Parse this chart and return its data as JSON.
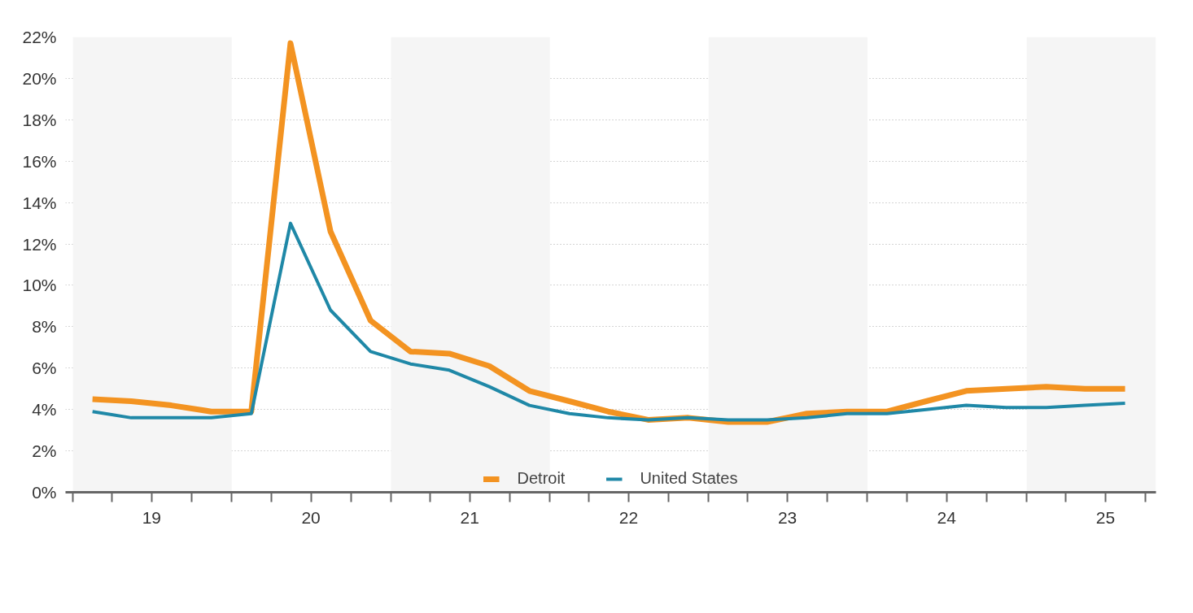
{
  "chart_data": {
    "type": "line",
    "x": [
      "2019-02-15",
      "2019-05-15",
      "2019-08-15",
      "2019-11-15",
      "2020-02-15",
      "2020-05-15",
      "2020-08-15",
      "2020-11-15",
      "2021-02-15",
      "2021-05-15",
      "2021-08-15",
      "2021-11-15",
      "2022-02-15",
      "2022-05-15",
      "2022-08-15",
      "2022-11-15",
      "2023-02-15",
      "2023-05-15",
      "2023-08-15",
      "2023-11-15",
      "2024-02-15",
      "2024-05-15",
      "2024-08-15",
      "2024-11-15",
      "2025-02-15",
      "2025-05-15",
      "2025-08-15"
    ],
    "series": [
      {
        "name": "Detroit",
        "color": "#f39321",
        "values": [
          4.5,
          4.4,
          4.2,
          3.9,
          3.9,
          21.7,
          12.6,
          8.3,
          6.8,
          6.7,
          6.1,
          4.9,
          4.4,
          3.9,
          3.5,
          3.6,
          3.4,
          3.4,
          3.8,
          3.9,
          3.9,
          4.4,
          4.9,
          5.0,
          5.1,
          5.0,
          5.0
        ]
      },
      {
        "name": "United States",
        "color": "#1f88a7",
        "values": [
          3.9,
          3.6,
          3.6,
          3.6,
          3.8,
          13.0,
          8.8,
          6.8,
          6.2,
          5.9,
          5.1,
          4.2,
          3.8,
          3.6,
          3.5,
          3.6,
          3.5,
          3.5,
          3.6,
          3.8,
          3.8,
          4.0,
          4.2,
          4.1,
          4.1,
          4.2,
          4.3
        ]
      }
    ],
    "xlim": [
      "2018-12-15",
      "2025-10-25"
    ],
    "xticks": [
      {
        "value": "2019-01-01",
        "label": null
      },
      {
        "value": "2019-04-01",
        "label": null
      },
      {
        "value": "2019-07-01",
        "label": "19"
      },
      {
        "value": "2019-10-01",
        "label": null
      },
      {
        "value": "2020-01-01",
        "label": null
      },
      {
        "value": "2020-04-01",
        "label": null
      },
      {
        "value": "2020-07-01",
        "label": "20"
      },
      {
        "value": "2020-10-01",
        "label": null
      },
      {
        "value": "2021-01-01",
        "label": null
      },
      {
        "value": "2021-04-01",
        "label": null
      },
      {
        "value": "2021-07-01",
        "label": "21"
      },
      {
        "value": "2021-10-01",
        "label": null
      },
      {
        "value": "2022-01-01",
        "label": null
      },
      {
        "value": "2022-04-01",
        "label": null
      },
      {
        "value": "2022-07-01",
        "label": "22"
      },
      {
        "value": "2022-10-01",
        "label": null
      },
      {
        "value": "2023-01-01",
        "label": null
      },
      {
        "value": "2023-04-01",
        "label": null
      },
      {
        "value": "2023-07-01",
        "label": "23"
      },
      {
        "value": "2023-10-01",
        "label": null
      },
      {
        "value": "2024-01-01",
        "label": null
      },
      {
        "value": "2024-04-01",
        "label": null
      },
      {
        "value": "2024-07-01",
        "label": "24"
      },
      {
        "value": "2024-10-01",
        "label": null
      },
      {
        "value": "2025-01-01",
        "label": null
      },
      {
        "value": "2025-04-01",
        "label": null
      },
      {
        "value": "2025-07-01",
        "label": "25"
      },
      {
        "value": "2025-10-01",
        "label": null
      }
    ],
    "ylim": [
      0,
      22
    ],
    "yticks": [
      {
        "value": 0,
        "label": "0%"
      },
      {
        "value": 2,
        "label": "2%"
      },
      {
        "value": 4,
        "label": "4%"
      },
      {
        "value": 6,
        "label": "6%"
      },
      {
        "value": 8,
        "label": "8%"
      },
      {
        "value": 10,
        "label": "10%"
      },
      {
        "value": 12,
        "label": "12%"
      },
      {
        "value": 14,
        "label": "14%"
      },
      {
        "value": 16,
        "label": "16%"
      },
      {
        "value": 18,
        "label": "18%"
      },
      {
        "value": 20,
        "label": "20%"
      },
      {
        "value": 22,
        "label": "22%"
      }
    ],
    "bands": [
      {
        "axis": "x",
        "from": "2019-01-01",
        "to": "2020-01-01",
        "color": "#f5f5f5"
      },
      {
        "axis": "x",
        "from": "2021-01-01",
        "to": "2022-01-01",
        "color": "#f5f5f5"
      },
      {
        "axis": "x",
        "from": "2023-01-01",
        "to": "2024-01-01",
        "color": "#f5f5f5"
      },
      {
        "axis": "x",
        "from": "2025-01-01",
        "to": "2025-10-25",
        "color": "#f5f5f5"
      }
    ],
    "grid": "y",
    "legend": "bottom",
    "marker": "none",
    "line_style": "solid"
  }
}
